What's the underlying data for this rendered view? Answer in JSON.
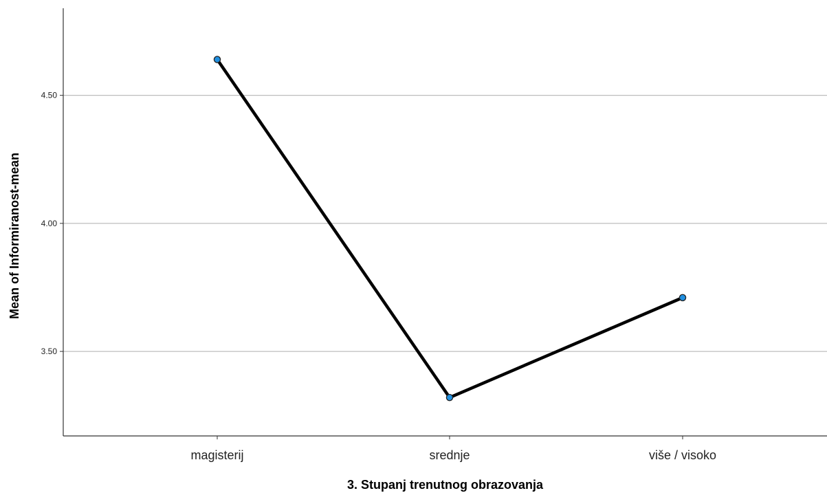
{
  "chart_data": {
    "type": "line",
    "categories": [
      "magisterij",
      "srednje",
      "više / visoko"
    ],
    "series": [
      {
        "values": [
          4.64,
          3.32,
          3.71
        ]
      }
    ],
    "xlabel": "3. Stupanj trenutnog obrazovanja",
    "ylabel": "Mean of Informiranost-mean",
    "yticks": [
      3.5,
      4.0,
      4.5
    ],
    "yticks_labels": [
      "3.50",
      "4.00",
      "4.50"
    ],
    "ylim": [
      3.17,
      4.84
    ],
    "grid": "horizontal",
    "line_color": "#000000",
    "marker_fill": "#1f8fe0",
    "marker_stroke": "#222222",
    "grid_color": "#bdbdbd"
  }
}
